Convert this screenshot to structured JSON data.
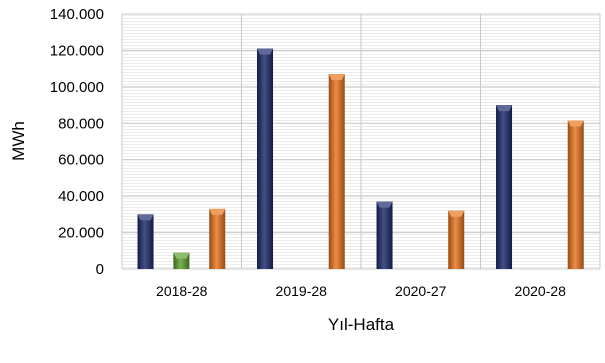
{
  "chart_data": {
    "type": "bar",
    "title": "",
    "xlabel": "Yıl-Hafta",
    "ylabel": "MWh",
    "ylim": [
      0,
      140000
    ],
    "yticks": [
      0,
      20000,
      40000,
      60000,
      80000,
      100000,
      120000,
      140000
    ],
    "ytick_labels": [
      "0",
      "20.000",
      "40.000",
      "60.000",
      "80.000",
      "100.000",
      "120.000",
      "140.000"
    ],
    "categories": [
      "2018-28",
      "2019-28",
      "2020-27",
      "2020-28"
    ],
    "grid": true,
    "legend": "none",
    "series": [
      {
        "color": "#1a2a6c",
        "values": [
          30000,
          121000,
          37000,
          90000
        ]
      },
      {
        "color": "#5aa02c",
        "values": [
          9000,
          0,
          0,
          0
        ]
      },
      {
        "color": "#e8741c",
        "values": [
          33000,
          107000,
          32000,
          81500
        ]
      }
    ]
  }
}
